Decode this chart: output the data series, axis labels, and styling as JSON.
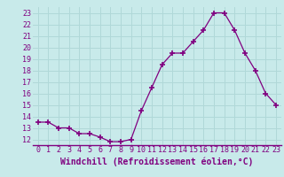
{
  "x": [
    0,
    1,
    2,
    3,
    4,
    5,
    6,
    7,
    8,
    9,
    10,
    11,
    12,
    13,
    14,
    15,
    16,
    17,
    18,
    19,
    20,
    21,
    22,
    23
  ],
  "y": [
    13.5,
    13.5,
    13.0,
    13.0,
    12.5,
    12.5,
    12.2,
    11.8,
    11.8,
    12.0,
    14.5,
    16.5,
    18.5,
    19.5,
    19.5,
    20.5,
    21.5,
    23.0,
    23.0,
    21.5,
    19.5,
    18.0,
    16.0,
    15.0
  ],
  "line_color": "#800080",
  "marker": "+",
  "marker_size": 4,
  "bg_color": "#c8eaea",
  "grid_color": "#b0d8d8",
  "xlabel": "Windchill (Refroidissement éolien,°C)",
  "xlabel_color": "#800080",
  "xlabel_fontsize": 7,
  "tick_color": "#800080",
  "tick_fontsize": 6,
  "ylim": [
    11.5,
    23.5
  ],
  "yticks": [
    12,
    13,
    14,
    15,
    16,
    17,
    18,
    19,
    20,
    21,
    22,
    23
  ],
  "xticks": [
    0,
    1,
    2,
    3,
    4,
    5,
    6,
    7,
    8,
    9,
    10,
    11,
    12,
    13,
    14,
    15,
    16,
    17,
    18,
    19,
    20,
    21,
    22,
    23
  ],
  "xlim": [
    -0.5,
    23.5
  ]
}
